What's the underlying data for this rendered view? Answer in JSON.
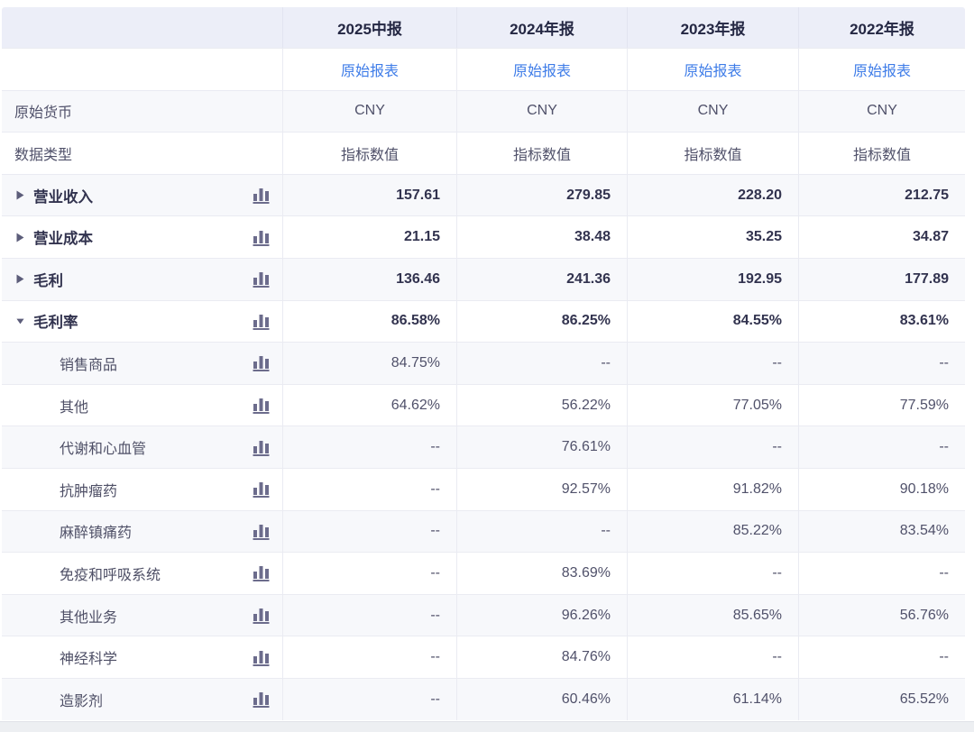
{
  "palette": {
    "header_bg": "#ECEEF8",
    "header_text": "#242743",
    "stripe": "#F7F8FB",
    "border": "#EAEBF2",
    "link_blue": "#3E7CE8",
    "bold_text": "#32334F",
    "regular_text": "#50516A",
    "icon_color": "#6C6C8C"
  },
  "columns": [
    {
      "period": "2025中报",
      "link": "原始报表",
      "currency": "CNY",
      "data_type": "指标数值"
    },
    {
      "period": "2024年报",
      "link": "原始报表",
      "currency": "CNY",
      "data_type": "指标数值"
    },
    {
      "period": "2023年报",
      "link": "原始报表",
      "currency": "CNY",
      "data_type": "指标数值"
    },
    {
      "period": "2022年报",
      "link": "原始报表",
      "currency": "CNY",
      "data_type": "指标数值"
    }
  ],
  "side_labels": {
    "currency_row": "原始货币",
    "data_type_row": "数据类型"
  },
  "icons": {
    "chart_icon_name": "bar-chart-icon",
    "collapsed_icon_name": "triangle-right-icon",
    "expanded_icon_name": "triangle-down-icon"
  },
  "rows": [
    {
      "label": "营业收入",
      "level": 0,
      "expand": "collapsed",
      "values": [
        "157.61",
        "279.85",
        "228.20",
        "212.75"
      ]
    },
    {
      "label": "营业成本",
      "level": 0,
      "expand": "collapsed",
      "values": [
        "21.15",
        "38.48",
        "35.25",
        "34.87"
      ]
    },
    {
      "label": "毛利",
      "level": 0,
      "expand": "collapsed",
      "values": [
        "136.46",
        "241.36",
        "192.95",
        "177.89"
      ]
    },
    {
      "label": "毛利率",
      "level": 0,
      "expand": "expanded",
      "values": [
        "86.58%",
        "86.25%",
        "84.55%",
        "83.61%"
      ]
    },
    {
      "label": "销售商品",
      "level": 1,
      "values": [
        "84.75%",
        "--",
        "--",
        "--"
      ]
    },
    {
      "label": "其他",
      "level": 1,
      "values": [
        "64.62%",
        "56.22%",
        "77.05%",
        "77.59%"
      ]
    },
    {
      "label": "代谢和心血管",
      "level": 1,
      "values": [
        "--",
        "76.61%",
        "--",
        "--"
      ]
    },
    {
      "label": "抗肿瘤药",
      "level": 1,
      "values": [
        "--",
        "92.57%",
        "91.82%",
        "90.18%"
      ]
    },
    {
      "label": "麻醉镇痛药",
      "level": 1,
      "values": [
        "--",
        "--",
        "85.22%",
        "83.54%"
      ]
    },
    {
      "label": "免疫和呼吸系统",
      "level": 1,
      "values": [
        "--",
        "83.69%",
        "--",
        "--"
      ]
    },
    {
      "label": "其他业务",
      "level": 1,
      "values": [
        "--",
        "96.26%",
        "85.65%",
        "56.76%"
      ]
    },
    {
      "label": "神经科学",
      "level": 1,
      "values": [
        "--",
        "84.76%",
        "--",
        "--"
      ]
    },
    {
      "label": "造影剂",
      "level": 1,
      "values": [
        "--",
        "60.46%",
        "61.14%",
        "65.52%"
      ]
    }
  ]
}
